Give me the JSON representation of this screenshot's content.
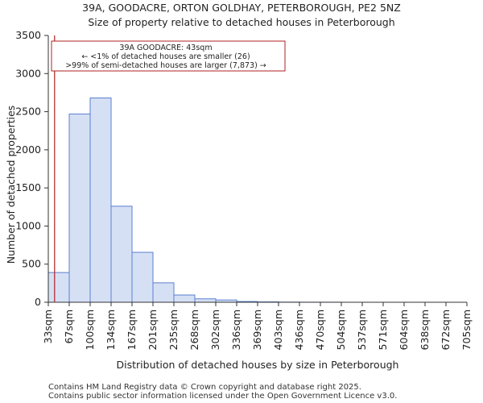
{
  "chart_data": {
    "type": "bar",
    "title": "39A, GOODACRE, ORTON GOLDHAY, PETERBOROUGH, PE2 5NZ",
    "subtitle": "Size of property relative to detached houses in Peterborough",
    "xlabel": "Distribution of detached houses by size in Peterborough",
    "ylabel": "Number of detached properties",
    "ylim": [
      0,
      3500
    ],
    "yticks": [
      0,
      500,
      1000,
      1500,
      2000,
      2500,
      3000,
      3500
    ],
    "bin_edges": [
      "33sqm",
      "67sqm",
      "100sqm",
      "134sqm",
      "167sqm",
      "201sqm",
      "235sqm",
      "268sqm",
      "302sqm",
      "336sqm",
      "369sqm",
      "403sqm",
      "436sqm",
      "470sqm",
      "504sqm",
      "537sqm",
      "571sqm",
      "604sqm",
      "638sqm",
      "672sqm",
      "705sqm"
    ],
    "values": [
      390,
      2470,
      2680,
      1260,
      655,
      255,
      95,
      45,
      30,
      10,
      5,
      2,
      1,
      1,
      0,
      0,
      0,
      0,
      0,
      0
    ],
    "marker": {
      "bin_position": 0.3,
      "color": "#b22222",
      "annotation": [
        "39A GOODACRE: 43sqm",
        "← <1% of detached houses are smaller (26)",
        ">99% of semi-detached houses are larger (7,873) →"
      ]
    },
    "bar_fill": "#d6e0f5",
    "bar_edge": "#5b7fcf"
  },
  "footer": {
    "line1": "Contains HM Land Registry data © Crown copyright and database right 2025.",
    "line2": "Contains public sector information licensed under the Open Government Licence v3.0."
  }
}
